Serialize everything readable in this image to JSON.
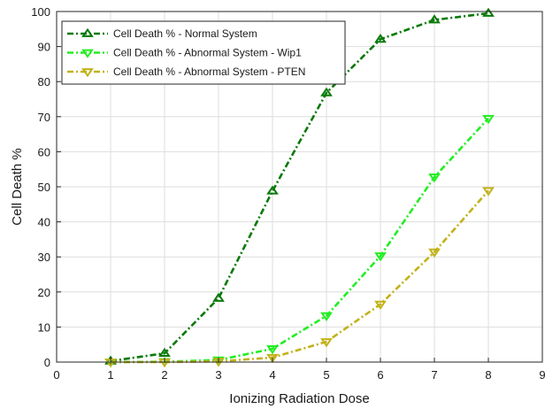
{
  "chart_data": {
    "type": "line",
    "title": "",
    "xlabel": "Ionizing Radiation Dose",
    "ylabel": "Cell Death %",
    "xlim": [
      0,
      9
    ],
    "ylim": [
      0,
      100
    ],
    "x_ticks": [
      "0",
      "1",
      "2",
      "3",
      "4",
      "5",
      "6",
      "7",
      "8",
      "9"
    ],
    "y_ticks": [
      "0",
      "10",
      "20",
      "30",
      "40",
      "50",
      "60",
      "70",
      "80",
      "90",
      "100"
    ],
    "grid": true,
    "legend_position": "top-left",
    "series": [
      {
        "name": "Cell Death % - Normal System",
        "color": "#0a7a0a",
        "marker": "triangle-up",
        "line_style": "dash-dot",
        "x": [
          1,
          2,
          3,
          4,
          5,
          6,
          7,
          8
        ],
        "y": [
          0.3,
          2.5,
          18.2,
          48.8,
          76.8,
          92.1,
          97.6,
          99.5
        ]
      },
      {
        "name": "Cell Death % - Abnormal System - Wip1",
        "color": "#22ee22",
        "marker": "triangle-down",
        "line_style": "dash-dot",
        "x": [
          1,
          2,
          3,
          4,
          5,
          6,
          7,
          8
        ],
        "y": [
          0.0,
          0.1,
          0.6,
          3.8,
          13.2,
          30.3,
          52.8,
          69.5
        ]
      },
      {
        "name": "Cell Death % - Abnormal System - PTEN",
        "color": "#c2b21a",
        "marker": "triangle-down",
        "line_style": "dash-dot",
        "x": [
          1,
          2,
          3,
          4,
          5,
          6,
          7,
          8
        ],
        "y": [
          0.0,
          0.0,
          0.2,
          1.3,
          5.8,
          16.5,
          31.4,
          48.9
        ]
      }
    ]
  }
}
